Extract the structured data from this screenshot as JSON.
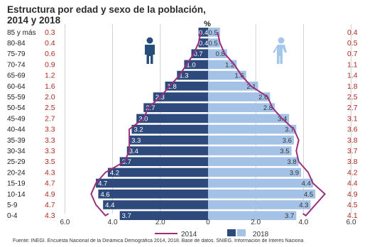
{
  "title": "Estructura por edad y sexo de la población, 2014 y 2018",
  "source": "Fuente:  INEGI. Encuesta Nacional de la Dinámica Demográfica 2014, 2018. Base de datos. SNIEG. Información de Interés Naciona",
  "colors": {
    "male_2018": "#2e4a7d",
    "female_2018": "#a4c2e6",
    "line_2014": "#9a2f7d",
    "label_red": "#b02a1e",
    "grid": "#c6c6c6",
    "male_icon": "#264e78",
    "female_icon": "#a3c8ea"
  },
  "icons": [
    "male-icon",
    "female-icon"
  ],
  "chart_data": {
    "type": "bar",
    "subtype": "population-pyramid",
    "unit_label": "%",
    "categories": [
      "85 y más",
      "80-84",
      "75-79",
      "70-74",
      "65-69",
      "60-64",
      "55-59",
      "50-54",
      "45-49",
      "40-44",
      "35-39",
      "30-34",
      "25-29",
      "20-24",
      "15-19",
      "10-14",
      "5-9",
      "0-4"
    ],
    "series": [
      {
        "name": "2018",
        "side": "left",
        "values": [
          0.4,
          0.4,
          0.7,
          1.0,
          1.3,
          1.8,
          2.3,
          2.7,
          3.0,
          3.2,
          3.3,
          3.4,
          3.7,
          4.2,
          4.7,
          4.6,
          4.4,
          3.7
        ]
      },
      {
        "name": "2018",
        "side": "right",
        "values": [
          0.5,
          0.5,
          0.8,
          1.2,
          1.6,
          2.1,
          2.6,
          2.8,
          3.4,
          3.7,
          3.6,
          3.5,
          3.8,
          3.9,
          4.4,
          4.5,
          4.3,
          3.7
        ]
      },
      {
        "name": "2014",
        "side": "left",
        "style": "line",
        "values": [
          0.3,
          0.4,
          0.6,
          0.9,
          1.2,
          1.6,
          2.0,
          2.5,
          2.7,
          3.3,
          3.3,
          3.3,
          3.5,
          4.3,
          4.7,
          4.9,
          4.7,
          4.3
        ]
      },
      {
        "name": "2014",
        "side": "right",
        "style": "line",
        "values": [
          0.4,
          0.5,
          0.7,
          1.1,
          1.4,
          1.8,
          2.5,
          2.7,
          3.1,
          3.6,
          3.8,
          3.7,
          3.8,
          4.2,
          4.4,
          4.9,
          4.5,
          4.1
        ]
      }
    ],
    "x_ticks": [
      "6.0",
      "4.0",
      "2.0",
      "0",
      "2.0",
      "4.0",
      "6.0"
    ],
    "xlim": [
      -6,
      6
    ],
    "legend": [
      "2014",
      "2018"
    ],
    "legend_position": "bottom",
    "grid": true
  }
}
